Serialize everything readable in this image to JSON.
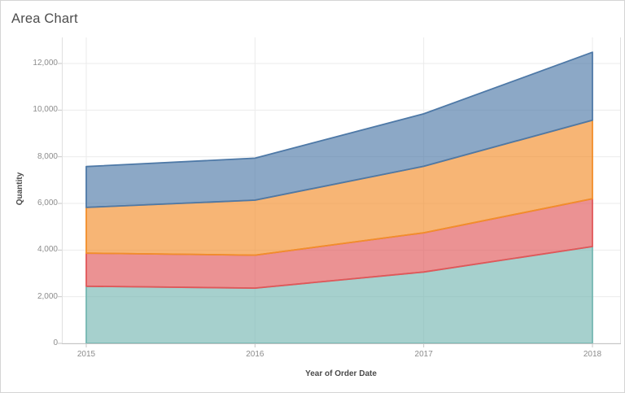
{
  "frame": {
    "title": "Area Chart"
  },
  "chart_data": {
    "type": "area",
    "stacked": true,
    "title": "Area Chart",
    "xlabel": "Year of Order Date",
    "ylabel": "Quantity",
    "x_categories": [
      "2015",
      "2016",
      "2017",
      "2018"
    ],
    "series": [
      {
        "name": "teal-band",
        "color": "#76b7b2",
        "values": [
          2450,
          2370,
          3060,
          4150
        ]
      },
      {
        "name": "red-band",
        "color": "#e15759",
        "values": [
          1420,
          1410,
          1680,
          2050
        ]
      },
      {
        "name": "orange-band",
        "color": "#f28e2b",
        "values": [
          1960,
          2360,
          2850,
          3370
        ]
      },
      {
        "name": "blue-band",
        "color": "#4e79a7",
        "values": [
          1750,
          1800,
          2250,
          2910
        ]
      }
    ],
    "stacked_totals": [
      7580,
      7940,
      9840,
      12480
    ],
    "fill_opacity": 0.65,
    "y_ticks": [
      {
        "value": 0,
        "label": "0"
      },
      {
        "value": 2000,
        "label": "2,000"
      },
      {
        "value": 4000,
        "label": "4,000"
      },
      {
        "value": 6000,
        "label": "6,000"
      },
      {
        "value": 8000,
        "label": "8,000"
      },
      {
        "value": 10000,
        "label": "10,000"
      },
      {
        "value": 12000,
        "label": "12,000"
      }
    ],
    "ylim": [
      0,
      13100
    ],
    "grid": true,
    "legend": "none"
  },
  "colors": {
    "background": "#ffffff",
    "border": "#d5d5d5",
    "grid": "#ebebeb",
    "axis_rule": "#e0e0e0",
    "axis_line": "#c5c5c5",
    "tick_mark": "#c6c6c6",
    "tick_label": "#8c8c8c",
    "axis_title": "#4a4a4a",
    "title": "#4d4d4d"
  }
}
